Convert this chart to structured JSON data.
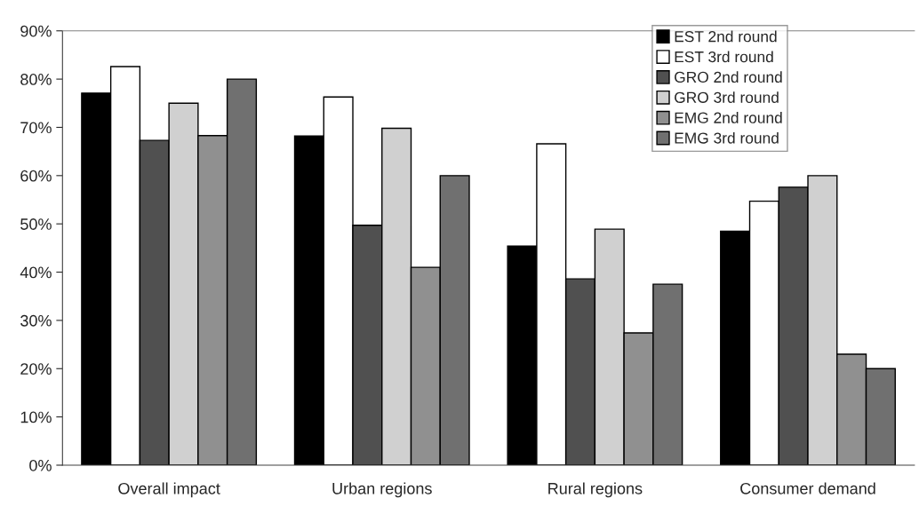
{
  "chart_data": {
    "type": "bar",
    "categories": [
      "Overall impact",
      "Urban regions",
      "Rural regions",
      "Consumer demand"
    ],
    "series": [
      {
        "name": "EST 2nd round",
        "color": "#000000",
        "values": [
          77.1,
          68.2,
          45.4,
          48.5
        ]
      },
      {
        "name": "EST 3rd round",
        "color": "#ffffff",
        "values": [
          82.6,
          76.3,
          66.6,
          54.7
        ]
      },
      {
        "name": "GRO 2nd round",
        "color": "#505050",
        "values": [
          67.3,
          49.7,
          38.6,
          57.6
        ]
      },
      {
        "name": "GRO 3rd round",
        "color": "#d0d0d0",
        "values": [
          75.0,
          69.8,
          48.9,
          60.0
        ]
      },
      {
        "name": "EMG 2nd round",
        "color": "#909090",
        "values": [
          68.3,
          41.0,
          27.4,
          23.0
        ]
      },
      {
        "name": "EMG 3rd round",
        "color": "#707070",
        "values": [
          80.0,
          60.0,
          37.5,
          20.0
        ]
      }
    ],
    "ylim": [
      0,
      90
    ],
    "yticks": [
      {
        "value": 0,
        "label": "0%"
      },
      {
        "value": 10,
        "label": "10%"
      },
      {
        "value": 20,
        "label": "20%"
      },
      {
        "value": 30,
        "label": "30%"
      },
      {
        "value": 40,
        "label": "40%"
      },
      {
        "value": 50,
        "label": "50%"
      },
      {
        "value": 60,
        "label": "60%"
      },
      {
        "value": 70,
        "label": "70%"
      },
      {
        "value": 80,
        "label": "80%"
      },
      {
        "value": 90,
        "label": "90%"
      }
    ],
    "grid": false,
    "legend": "top right"
  }
}
